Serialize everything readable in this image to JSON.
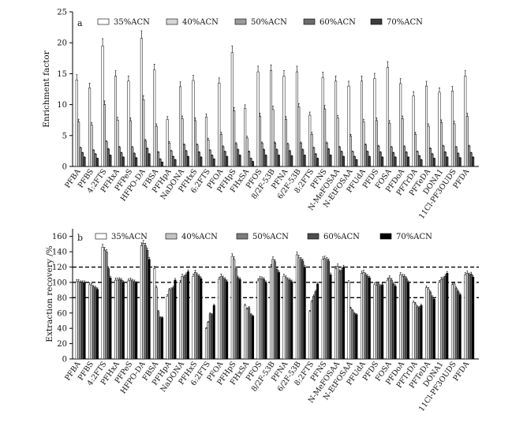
{
  "chart_data": [
    {
      "type": "bar",
      "panel_label": "a",
      "ylabel": "Enrichment factor",
      "xlabel": "",
      "ylim": [
        0,
        25
      ],
      "yticks": [
        0,
        5,
        10,
        15,
        20,
        25
      ],
      "legend_position": "top",
      "categories": [
        "PFBA",
        "PFBS",
        "4:2FTS",
        "PFHxA",
        "PFPeS",
        "HFPO-DA",
        "FBSA",
        "PFHpA",
        "NaDONA",
        "PFHxS",
        "6:2FTS",
        "PFOA",
        "PFHpS",
        "FHxSA",
        "PFOS",
        "8/2F-53B",
        "PFNA",
        "6/2F-53B",
        "8:2FTS",
        "PFNS",
        "N-MeFOSAA",
        "N-EtFOSAA",
        "PFUdA",
        "PFDS",
        "FOSA",
        "PFDoA",
        "PFTrDA",
        "PFTeDA",
        "DONA1",
        "11Cl-PF3OUDS",
        "PFDA"
      ],
      "series": [
        {
          "name": "35%ACN",
          "values": [
            14.0,
            12.7,
            19.5,
            14.6,
            13.8,
            20.7,
            15.6,
            7.6,
            12.9,
            13.9,
            8.0,
            13.5,
            18.4,
            9.4,
            15.3,
            15.5,
            14.6,
            15.3,
            8.3,
            14.4,
            13.8,
            13.0,
            13.8,
            14.2,
            16.0,
            13.4,
            11.4,
            13.0,
            12.0,
            12.2,
            14.6
          ]
        },
        {
          "name": "40%ACN",
          "values": [
            7.2,
            6.7,
            10.0,
            7.5,
            7.4,
            10.8,
            6.5,
            3.8,
            7.7,
            7.4,
            4.3,
            5.2,
            9.0,
            4.6,
            8.1,
            9.2,
            7.6,
            9.6,
            5.2,
            9.3,
            7.8,
            4.9,
            7.2,
            7.4,
            7.0,
            7.7,
            5.2,
            6.5,
            7.1,
            6.9,
            8.1
          ]
        },
        {
          "name": "50%ACN",
          "values": [
            3.0,
            2.6,
            4.0,
            3.1,
            3.1,
            4.2,
            2.3,
            2.5,
            3.5,
            3.5,
            2.6,
            3.2,
            3.7,
            2.4,
            3.8,
            3.8,
            3.6,
            3.8,
            3.0,
            3.8,
            3.1,
            2.4,
            3.5,
            3.3,
            3.1,
            3.2,
            2.4,
            2.9,
            3.3,
            3.1,
            3.3
          ]
        },
        {
          "name": "60%ACN",
          "values": [
            2.2,
            2.0,
            2.8,
            2.2,
            2.1,
            2.9,
            1.2,
            1.6,
            2.5,
            2.3,
            1.8,
            2.4,
            2.7,
            1.3,
            2.7,
            2.7,
            2.5,
            2.7,
            2.0,
            2.8,
            2.4,
            1.6,
            2.4,
            2.3,
            2.2,
            2.3,
            1.7,
            2.0,
            2.3,
            2.1,
            2.2
          ]
        },
        {
          "name": "70%ACN",
          "values": [
            1.5,
            1.3,
            1.8,
            1.5,
            1.4,
            2.0,
            0.7,
            1.1,
            1.6,
            1.5,
            1.2,
            1.6,
            1.8,
            0.8,
            1.8,
            1.8,
            1.7,
            1.8,
            1.3,
            1.8,
            1.6,
            1.1,
            1.6,
            1.5,
            1.5,
            1.5,
            1.1,
            1.3,
            1.5,
            1.4,
            1.5
          ]
        }
      ],
      "colors": [
        "#ffffff",
        "#d6d6d6",
        "#9a9a9a",
        "#6b6b6b",
        "#3c3c3c"
      ]
    },
    {
      "type": "bar",
      "panel_label": "b",
      "ylabel": "Extraction recovery /%",
      "xlabel": "",
      "ylim": [
        0,
        170
      ],
      "yticks": [
        0,
        20,
        40,
        60,
        80,
        100,
        120,
        140,
        160
      ],
      "reference_lines": [
        80,
        100,
        120
      ],
      "legend_position": "top",
      "categories": [
        "PFBA",
        "PFBS",
        "4:2FTS",
        "PFHxA",
        "PFPeS",
        "HFPO-DA",
        "FBSA",
        "PFHpA",
        "NaDONA",
        "PFHxS",
        "6:2FTS",
        "PFOA",
        "PFHpS",
        "FHxSA",
        "PFOS",
        "8/2F-53B",
        "PFNA",
        "6/2F-53B",
        "8:2FTS",
        "PFNS",
        "N-MeFOSAA",
        "N-EtFOSAA",
        "PFUdA",
        "PFDS",
        "FOSA",
        "PFDoA",
        "PFTrDA",
        "PFTeDA",
        "DONA1",
        "11Cl-PF3OUDS",
        "PFDA"
      ],
      "series": [
        {
          "name": "35%ACN",
          "values": [
            101,
            97,
            146,
            103,
            102,
            148,
            118,
            82,
            100,
            108,
            40,
            104,
            134,
            70,
            102,
            120,
            108,
            136,
            62,
            130,
            118,
            100,
            112,
            97,
            103,
            110,
            74,
            93,
            100,
            97,
            110
          ]
        },
        {
          "name": "40%ACN",
          "values": [
            101,
            96,
            142,
            103,
            103,
            151,
            93,
            90,
            108,
            113,
            48,
            108,
            130,
            65,
            105,
            130,
            106,
            132,
            75,
            131,
            121,
            66,
            113,
            96,
            106,
            108,
            72,
            91,
            104,
            98,
            112
          ]
        },
        {
          "name": "50%ACN",
          "values": [
            100,
            94,
            140,
            104,
            102,
            148,
            62,
            91,
            107,
            110,
            59,
            106,
            118,
            67,
            105,
            127,
            104,
            130,
            82,
            130,
            114,
            63,
            110,
            98,
            103,
            108,
            68,
            87,
            105,
            92,
            110
          ]
        },
        {
          "name": "60%ACN",
          "values": [
            100,
            93,
            118,
            103,
            101,
            142,
            54,
            93,
            110,
            108,
            58,
            104,
            106,
            58,
            104,
            117,
            103,
            128,
            88,
            128,
            116,
            59,
            108,
            95,
            98,
            105,
            67,
            81,
            108,
            88,
            111
          ]
        },
        {
          "name": "70%ACN",
          "values": [
            100,
            91,
            106,
            100,
            99,
            130,
            54,
            103,
            114,
            105,
            70,
            101,
            104,
            56,
            100,
            113,
            101,
            120,
            98,
            110,
            120,
            58,
            106,
            97,
            95,
            100,
            70,
            78,
            112,
            84,
            107
          ]
        }
      ],
      "colors": [
        "#ffffff",
        "#c4c4c4",
        "#7d7d7d",
        "#4e4e4e",
        "#000000"
      ]
    }
  ]
}
